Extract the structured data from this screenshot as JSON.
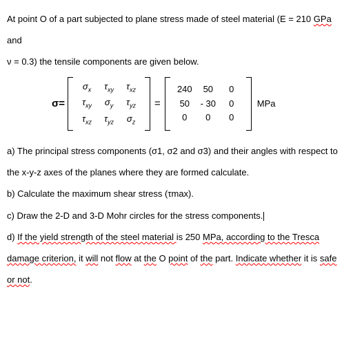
{
  "intro": {
    "line1a": "At point O of a part subjected to plane stress made of steel material (E = 210 ",
    "gpa": "GPa",
    "line1b": " and",
    "line2": "ν = 0.3) the tensile components are given below."
  },
  "matrix": {
    "sigma_label": "σ=",
    "eq": "=",
    "sym": {
      "r0c0": "σ",
      "r0c0_sub": "x",
      "r0c1": "τ",
      "r0c1_sub": "xy",
      "r0c2": "τ",
      "r0c2_sub": "xz",
      "r1c0": "τ",
      "r1c0_sub": "xy",
      "r1c1": "σ",
      "r1c1_sub": "y",
      "r1c2": "τ",
      "r1c2_sub": "yz",
      "r2c0": "τ",
      "r2c0_sub": "xz",
      "r2c1": "τ",
      "r2c1_sub": "yz",
      "r2c2": "σ",
      "r2c2_sub": "z"
    },
    "num": {
      "r0c0": "240",
      "r0c1": "50",
      "r0c2": "0",
      "r1c0": "50",
      "r1c1": "- 30",
      "r1c2": "0",
      "r2c0": "0",
      "r2c1": "0",
      "r2c2": "0"
    },
    "unit": "MPa"
  },
  "questions": {
    "a1": "a) The principal stress components (σ1, σ2 and σ3) and their angles with respect to",
    "a2": "the x-y-z axes of the planes where they are formed calculate.",
    "b": "b) Calculate the maximum shear stress (τmax).",
    "c": "c) Draw the 2-D and 3-D Mohr circles for the stress components.",
    "d1a": "d) ",
    "d1b": "If the yield strength of the steel material ",
    "d1c": "is 250 ",
    "d1d": "MPa, according to the Tresca",
    "d2a": "damage criterion,",
    "d2b": " it ",
    "d2c": "will",
    "d2d": " not ",
    "d2e": "flow",
    "d2f": " at ",
    "d2g": "the",
    "d2h": " O ",
    "d2i": "point",
    "d2j": " of ",
    "d2k": "the",
    "d2l": " part. ",
    "d2m": "Indicate whether",
    "d2n": " it is ",
    "d2o": "safe",
    "d3a": "or not",
    "d3b": "."
  }
}
